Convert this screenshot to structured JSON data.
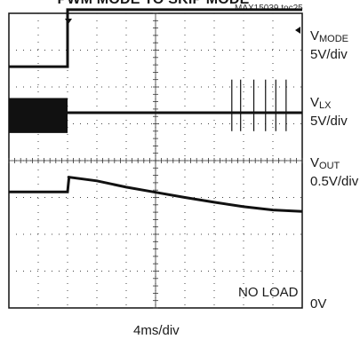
{
  "title": "PWM MODE TO SKIP MODE",
  "figure_ref": "MAX15039 toc25",
  "chart_data": {
    "type": "line",
    "grid": true,
    "divisions": {
      "x": 10,
      "y": 8
    },
    "x_scale": "4ms/div",
    "trigger_division": 2,
    "annotation": "NO LOAD",
    "ground_label": "0V",
    "channels": [
      {
        "name": "VMODE",
        "name_base": "V",
        "name_sub": "MODE",
        "scale": "5V/div",
        "low_div": 0.05,
        "high_div": 1.6,
        "step_at_div": 2
      },
      {
        "name": "VLX",
        "name_base": "V",
        "name_sub": "LX",
        "scale": "5V/div",
        "pwm_band_div": [
          0.05,
          1.0
        ],
        "skip_baseline_div": 0.6,
        "skip_pulse_x_div": [
          7.6,
          7.9,
          8.35,
          8.75,
          9.1,
          9.45
        ]
      },
      {
        "name": "VOUT",
        "name_base": "V",
        "name_sub": "OUT",
        "scale": "0.5V/div",
        "x_div": [
          0,
          2,
          2.05,
          3,
          4,
          5,
          6,
          7,
          8,
          9,
          10
        ],
        "y_div": [
          0.45,
          0.45,
          0.85,
          0.75,
          0.58,
          0.44,
          0.3,
          0.17,
          0.05,
          -0.04,
          -0.08
        ]
      }
    ]
  }
}
